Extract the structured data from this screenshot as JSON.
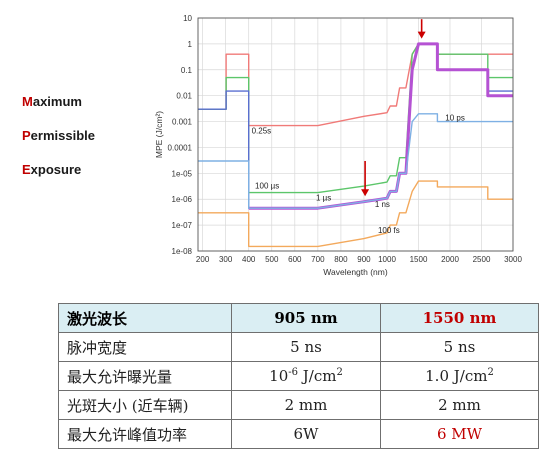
{
  "side_labels": [
    {
      "initial": "M",
      "rest": "aximum"
    },
    {
      "initial": "P",
      "rest": "ermissible"
    },
    {
      "initial": "E",
      "rest": "xposure"
    }
  ],
  "colors": {
    "accent_red": "#c00000",
    "header_bg": "#daeef3",
    "arrow": "#cc0000"
  },
  "chart_data": {
    "type": "line",
    "xlabel": "Wavelength (nm)",
    "ylabel": "MPE (J/cm²)",
    "xlim": [
      180,
      3000
    ],
    "ylim": [
      1e-08,
      10
    ],
    "y_scale": "log",
    "grid": true,
    "x_ticks": [
      200,
      300,
      400,
      500,
      600,
      700,
      800,
      900,
      1000,
      1500,
      2000,
      2500,
      3000
    ],
    "x_tick_labels": [
      "200",
      "300",
      "400",
      "500",
      "600",
      "700",
      "800",
      "900",
      "1000",
      "1500",
      "2000",
      "2500",
      "3000"
    ],
    "y_ticks": [
      1e-08,
      1e-07,
      1e-06,
      1e-05,
      0.0001,
      0.001,
      0.01,
      0.1,
      1,
      10
    ],
    "y_tick_labels": [
      "1e-08",
      "1e-07",
      "1e-06",
      "1e-05",
      "0.0001",
      "0.001",
      "0.01",
      "0.1",
      "1",
      "10"
    ],
    "series": [
      {
        "name": "0.25s",
        "color": "#f07a78",
        "width": 1.4,
        "points": [
          [
            180,
            0.003
          ],
          [
            302,
            0.003
          ],
          [
            302,
            0.4
          ],
          [
            400,
            0.4
          ],
          [
            400,
            0.0007
          ],
          [
            700,
            0.0007
          ],
          [
            900,
            0.0016
          ],
          [
            1000,
            0.0022
          ],
          [
            1050,
            0.004
          ],
          [
            1150,
            0.004
          ],
          [
            1200,
            0.02
          ],
          [
            1300,
            0.02
          ],
          [
            1400,
            0.4
          ],
          [
            1500,
            1.0
          ],
          [
            1800,
            1.0
          ],
          [
            1800,
            0.4
          ],
          [
            3000,
            0.4
          ]
        ]
      },
      {
        "name": "",
        "color": "#5cc66a",
        "width": 1.4,
        "points": [
          [
            180,
            0.003
          ],
          [
            302,
            0.003
          ],
          [
            302,
            0.05
          ],
          [
            400,
            0.05
          ],
          [
            400,
            1.8e-06
          ],
          [
            700,
            1.8e-06
          ],
          [
            900,
            3.2e-06
          ],
          [
            1000,
            4.6e-06
          ],
          [
            1050,
            8e-06
          ],
          [
            1150,
            8e-06
          ],
          [
            1200,
            4e-05
          ],
          [
            1300,
            4e-05
          ],
          [
            1400,
            0.4
          ],
          [
            1500,
            1.0
          ],
          [
            1800,
            1.0
          ],
          [
            1800,
            0.4
          ],
          [
            2600,
            0.4
          ],
          [
            2600,
            0.05
          ],
          [
            3000,
            0.05
          ]
        ]
      },
      {
        "name": "",
        "color": "#5a6fd0",
        "width": 1.4,
        "points": [
          [
            180,
            0.003
          ],
          [
            302,
            0.003
          ],
          [
            302,
            0.015
          ],
          [
            400,
            0.015
          ],
          [
            400,
            4.5e-07
          ],
          [
            700,
            4.5e-07
          ],
          [
            900,
            8e-07
          ],
          [
            1000,
            1.1e-06
          ],
          [
            1050,
            2e-06
          ],
          [
            1150,
            2e-06
          ],
          [
            1200,
            1e-05
          ],
          [
            1300,
            1e-05
          ],
          [
            1400,
            0.1
          ],
          [
            1500,
            1.0
          ],
          [
            1800,
            1.0
          ],
          [
            1800,
            0.1
          ],
          [
            2600,
            0.1
          ],
          [
            2600,
            0.015
          ],
          [
            3000,
            0.015
          ]
        ]
      },
      {
        "name": "",
        "color": "#b552d3",
        "width": 3.0,
        "points": [
          [
            400,
            4.5e-07
          ],
          [
            700,
            4.5e-07
          ],
          [
            900,
            8e-07
          ],
          [
            1000,
            1.1e-06
          ],
          [
            1050,
            2e-06
          ],
          [
            1150,
            2e-06
          ],
          [
            1200,
            1e-05
          ],
          [
            1300,
            1e-05
          ],
          [
            1400,
            0.1
          ],
          [
            1500,
            1.0
          ],
          [
            1800,
            1.0
          ],
          [
            1800,
            0.1
          ],
          [
            2600,
            0.1
          ],
          [
            2600,
            0.01
          ],
          [
            3000,
            0.01
          ]
        ]
      },
      {
        "name": "10 ps",
        "color": "#7eb0e4",
        "width": 1.4,
        "points": [
          [
            180,
            3e-05
          ],
          [
            400,
            3e-05
          ],
          [
            400,
            4.5e-07
          ],
          [
            700,
            4.5e-07
          ],
          [
            900,
            8e-07
          ],
          [
            1000,
            1.1e-06
          ],
          [
            1050,
            2e-06
          ],
          [
            1150,
            2e-06
          ],
          [
            1200,
            1e-05
          ],
          [
            1300,
            1e-05
          ],
          [
            1400,
            0.001
          ],
          [
            1500,
            0.002
          ],
          [
            1800,
            0.002
          ],
          [
            1800,
            0.001
          ],
          [
            2600,
            0.001
          ],
          [
            2600,
            0.001
          ],
          [
            3000,
            0.001
          ]
        ]
      },
      {
        "name": "100 fs",
        "color": "#f3a95c",
        "width": 1.4,
        "points": [
          [
            180,
            3e-07
          ],
          [
            302,
            3e-07
          ],
          [
            400,
            3e-07
          ],
          [
            400,
            1.5e-08
          ],
          [
            700,
            1.5e-08
          ],
          [
            900,
            3e-08
          ],
          [
            1000,
            5e-08
          ],
          [
            1050,
            1e-07
          ],
          [
            1150,
            1e-07
          ],
          [
            1200,
            3e-07
          ],
          [
            1300,
            3e-07
          ],
          [
            1400,
            2e-06
          ],
          [
            1500,
            5e-06
          ],
          [
            1800,
            5e-06
          ],
          [
            1800,
            3e-06
          ],
          [
            2600,
            3e-06
          ],
          [
            2600,
            1e-06
          ],
          [
            3000,
            1e-06
          ]
        ]
      }
    ],
    "annotations": [
      {
        "text": "0.25s",
        "x": 455,
        "y": 0.00035
      },
      {
        "text": "100 µs",
        "x": 480,
        "y": 2.6e-06
      },
      {
        "text": "1 µs",
        "x": 725,
        "y": 9e-07
      },
      {
        "text": "1 ns",
        "x": 980,
        "y": 5e-07
      },
      {
        "text": "10 ps",
        "x": 2080,
        "y": 0.0011
      },
      {
        "text": "100 fs",
        "x": 1030,
        "y": 5e-08
      }
    ],
    "arrows": [
      {
        "x": 905,
        "y_from": 3e-05,
        "y_to": 1.3e-06
      },
      {
        "x": 1550,
        "y_from": 9,
        "y_to": 1.6
      }
    ]
  },
  "table": {
    "header": {
      "label": "激光波长",
      "col1": "905 nm",
      "col2": "1550 nm"
    },
    "rows": [
      {
        "label": "脉冲宽度",
        "col1": "5 ns",
        "col2": "5 ns"
      },
      {
        "label": "最大允许曝光量",
        "col1_pre": "10",
        "col1_sup": "-6",
        "col1_post": " J/cm",
        "col1_sup2": "2",
        "col2_pre": "1.0 J/cm",
        "col2_sup": "2"
      },
      {
        "label": "光斑大小 (近车辆)",
        "col1": "2 mm",
        "col2": "2 mm"
      },
      {
        "label": "最大允许峰值功率",
        "col1": "6W",
        "col2": "6 MW"
      }
    ]
  }
}
